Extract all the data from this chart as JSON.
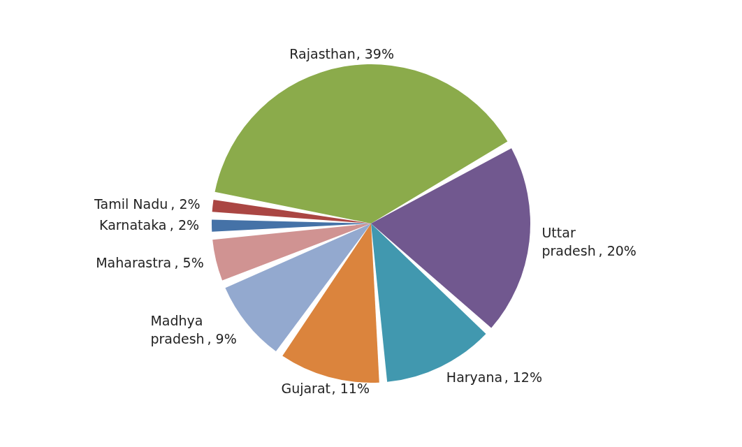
{
  "chart_data": {
    "type": "pie",
    "categories": [
      "Rajasthan",
      "Uttar pradesh",
      "Haryana",
      "Gujarat",
      "Madhya pradesh",
      "Maharastra",
      "Karnataka",
      "Tamil Nadu"
    ],
    "values": [
      39,
      20,
      12,
      11,
      9,
      5,
      2,
      2
    ],
    "colors": [
      "#8bab4b",
      "#71588f",
      "#4198af",
      "#db843d",
      "#93a9cf",
      "#d09392",
      "#4572a7",
      "#aa4643"
    ],
    "value_labels": [
      ", 39%",
      ", 20%",
      ", 12%",
      ", 11%",
      ", 9%",
      ", 5%",
      ", 2%",
      ", 2%"
    ]
  }
}
